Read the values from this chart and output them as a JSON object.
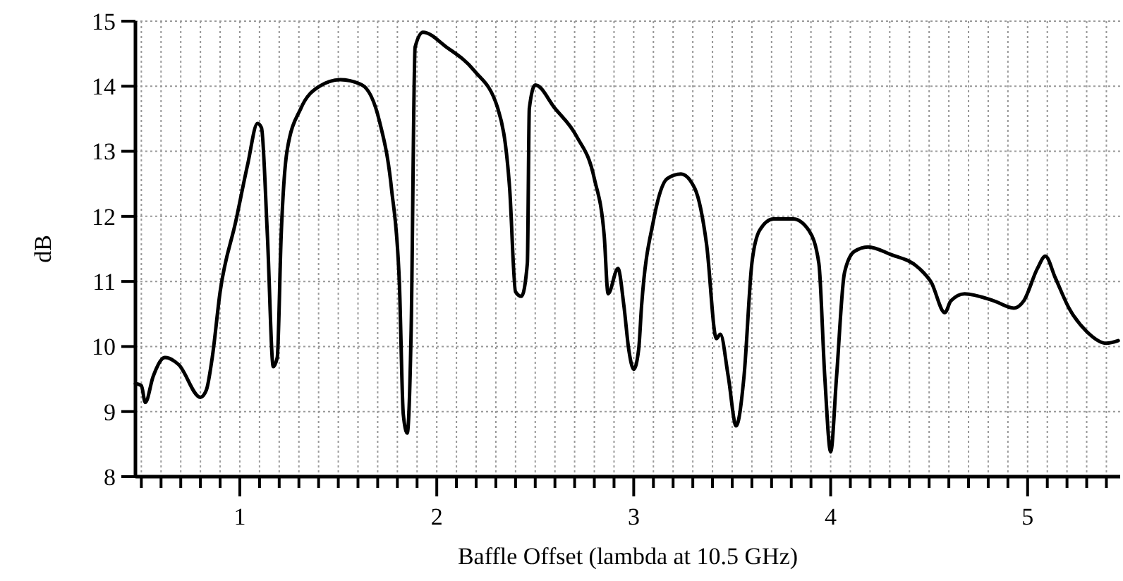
{
  "chart_data": {
    "type": "line",
    "xlabel": "Baffle Offset (lambda at 10.5 GHz)",
    "ylabel": "dB",
    "xlim": [
      0.47,
      5.47
    ],
    "ylim": [
      8,
      15
    ],
    "xticks": [
      {
        "value": 0.5,
        "label": null
      },
      {
        "value": 0.6,
        "label": null
      },
      {
        "value": 0.7,
        "label": null
      },
      {
        "value": 0.8,
        "label": null
      },
      {
        "value": 0.9,
        "label": null
      },
      1,
      {
        "value": 1.1,
        "label": null
      },
      {
        "value": 1.2,
        "label": null
      },
      {
        "value": 1.3,
        "label": null
      },
      {
        "value": 1.4,
        "label": null
      },
      {
        "value": 1.5,
        "label": null
      },
      {
        "value": 1.6,
        "label": null
      },
      {
        "value": 1.7,
        "label": null
      },
      {
        "value": 1.8,
        "label": null
      },
      {
        "value": 1.9,
        "label": null
      },
      2,
      {
        "value": 2.1,
        "label": null
      },
      {
        "value": 2.2,
        "label": null
      },
      {
        "value": 2.3,
        "label": null
      },
      {
        "value": 2.4,
        "label": null
      },
      {
        "value": 2.5,
        "label": null
      },
      {
        "value": 2.6,
        "label": null
      },
      {
        "value": 2.7,
        "label": null
      },
      {
        "value": 2.8,
        "label": null
      },
      {
        "value": 2.9,
        "label": null
      },
      3,
      {
        "value": 3.1,
        "label": null
      },
      {
        "value": 3.2,
        "label": null
      },
      {
        "value": 3.3,
        "label": null
      },
      {
        "value": 3.4,
        "label": null
      },
      {
        "value": 3.5,
        "label": null
      },
      {
        "value": 3.6,
        "label": null
      },
      {
        "value": 3.7,
        "label": null
      },
      {
        "value": 3.8,
        "label": null
      },
      {
        "value": 3.9,
        "label": null
      },
      4,
      {
        "value": 4.1,
        "label": null
      },
      {
        "value": 4.2,
        "label": null
      },
      {
        "value": 4.3,
        "label": null
      },
      {
        "value": 4.4,
        "label": null
      },
      {
        "value": 4.5,
        "label": null
      },
      {
        "value": 4.6,
        "label": null
      },
      {
        "value": 4.7,
        "label": null
      },
      {
        "value": 4.8,
        "label": null
      },
      {
        "value": 4.9,
        "label": null
      },
      5,
      {
        "value": 5.1,
        "label": null
      },
      {
        "value": 5.2,
        "label": null
      },
      {
        "value": 5.3,
        "label": null
      },
      {
        "value": 5.4,
        "label": null
      }
    ],
    "yticks": [
      8,
      9,
      10,
      11,
      12,
      13,
      14,
      15
    ],
    "grid": true,
    "line_style": "solid",
    "marker": "none",
    "series": [
      {
        "color": "#000000",
        "x": [
          0.47,
          0.5,
          0.52,
          0.56,
          0.62,
          0.69,
          0.8,
          0.83,
          0.86,
          0.9,
          0.98,
          1.04,
          1.09,
          1.11,
          1.14,
          1.17,
          1.19,
          1.21,
          1.24,
          1.31,
          1.4,
          1.51,
          1.62,
          1.71,
          1.77,
          1.81,
          1.83,
          1.85,
          1.87,
          1.89,
          1.93,
          2.05,
          2.19,
          2.31,
          2.37,
          2.4,
          2.43,
          2.46,
          2.47,
          2.5,
          2.6,
          2.71,
          2.8,
          2.85,
          2.87,
          2.92,
          2.95,
          2.975,
          3.0,
          3.025,
          3.04,
          3.1,
          3.17,
          3.24,
          3.31,
          3.37,
          3.42,
          3.44,
          3.48,
          3.52,
          3.56,
          3.6,
          3.64,
          3.71,
          3.81,
          3.89,
          3.94,
          3.97,
          4.0,
          4.03,
          4.07,
          4.12,
          4.19,
          4.3,
          4.45,
          4.51,
          4.58,
          4.61,
          4.68,
          4.83,
          4.93,
          4.98,
          5.05,
          5.09,
          5.14,
          5.21,
          5.3,
          5.4,
          5.46
        ],
        "values": [
          9.43,
          9.4,
          9.14,
          9.54,
          9.83,
          9.72,
          9.22,
          9.33,
          9.83,
          10.84,
          11.93,
          12.8,
          13.43,
          13.36,
          11.71,
          9.69,
          9.83,
          11.71,
          13.01,
          13.66,
          13.99,
          14.1,
          14.02,
          13.45,
          12.43,
          10.99,
          8.96,
          8.67,
          10.26,
          14.6,
          14.83,
          14.6,
          14.24,
          13.66,
          12.43,
          10.84,
          10.77,
          11.28,
          13.66,
          14.02,
          13.66,
          13.23,
          12.58,
          11.71,
          10.81,
          11.2,
          10.63,
          9.95,
          9.65,
          9.95,
          10.63,
          11.93,
          12.58,
          12.65,
          12.43,
          11.57,
          10.12,
          10.19,
          9.54,
          8.78,
          9.54,
          11.28,
          11.79,
          11.96,
          11.96,
          11.78,
          11.28,
          9.54,
          8.38,
          9.54,
          11.13,
          11.46,
          11.53,
          11.42,
          11.2,
          10.99,
          10.52,
          10.7,
          10.81,
          10.7,
          10.59,
          10.7,
          11.2,
          11.39,
          11.06,
          10.59,
          10.23,
          10.05,
          10.09
        ]
      }
    ]
  }
}
